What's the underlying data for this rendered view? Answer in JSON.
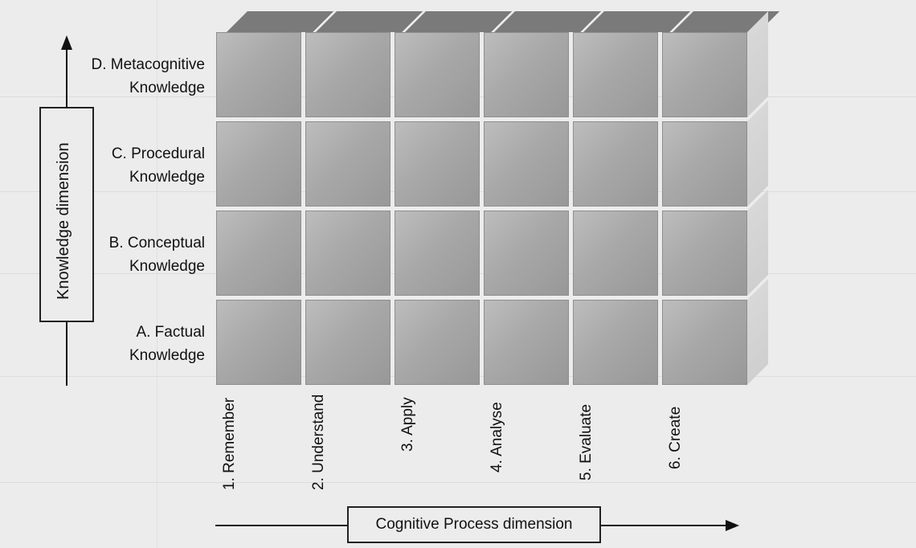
{
  "diagram": {
    "knowledge_dimension_label": "Knowledge dimension",
    "cognitive_process_label": "Cognitive Process dimension",
    "rows": [
      {
        "line1": "D. Metacognitive",
        "line2": "Knowledge"
      },
      {
        "line1": "C. Procedural",
        "line2": "Knowledge"
      },
      {
        "line1": "B. Conceptual",
        "line2": "Knowledge"
      },
      {
        "line1": "A. Factual",
        "line2": "Knowledge"
      }
    ],
    "columns": [
      "1. Remember",
      "2. Understand",
      "3. Apply",
      "4. Analyse",
      "5. Evaluate",
      "6. Create"
    ]
  }
}
